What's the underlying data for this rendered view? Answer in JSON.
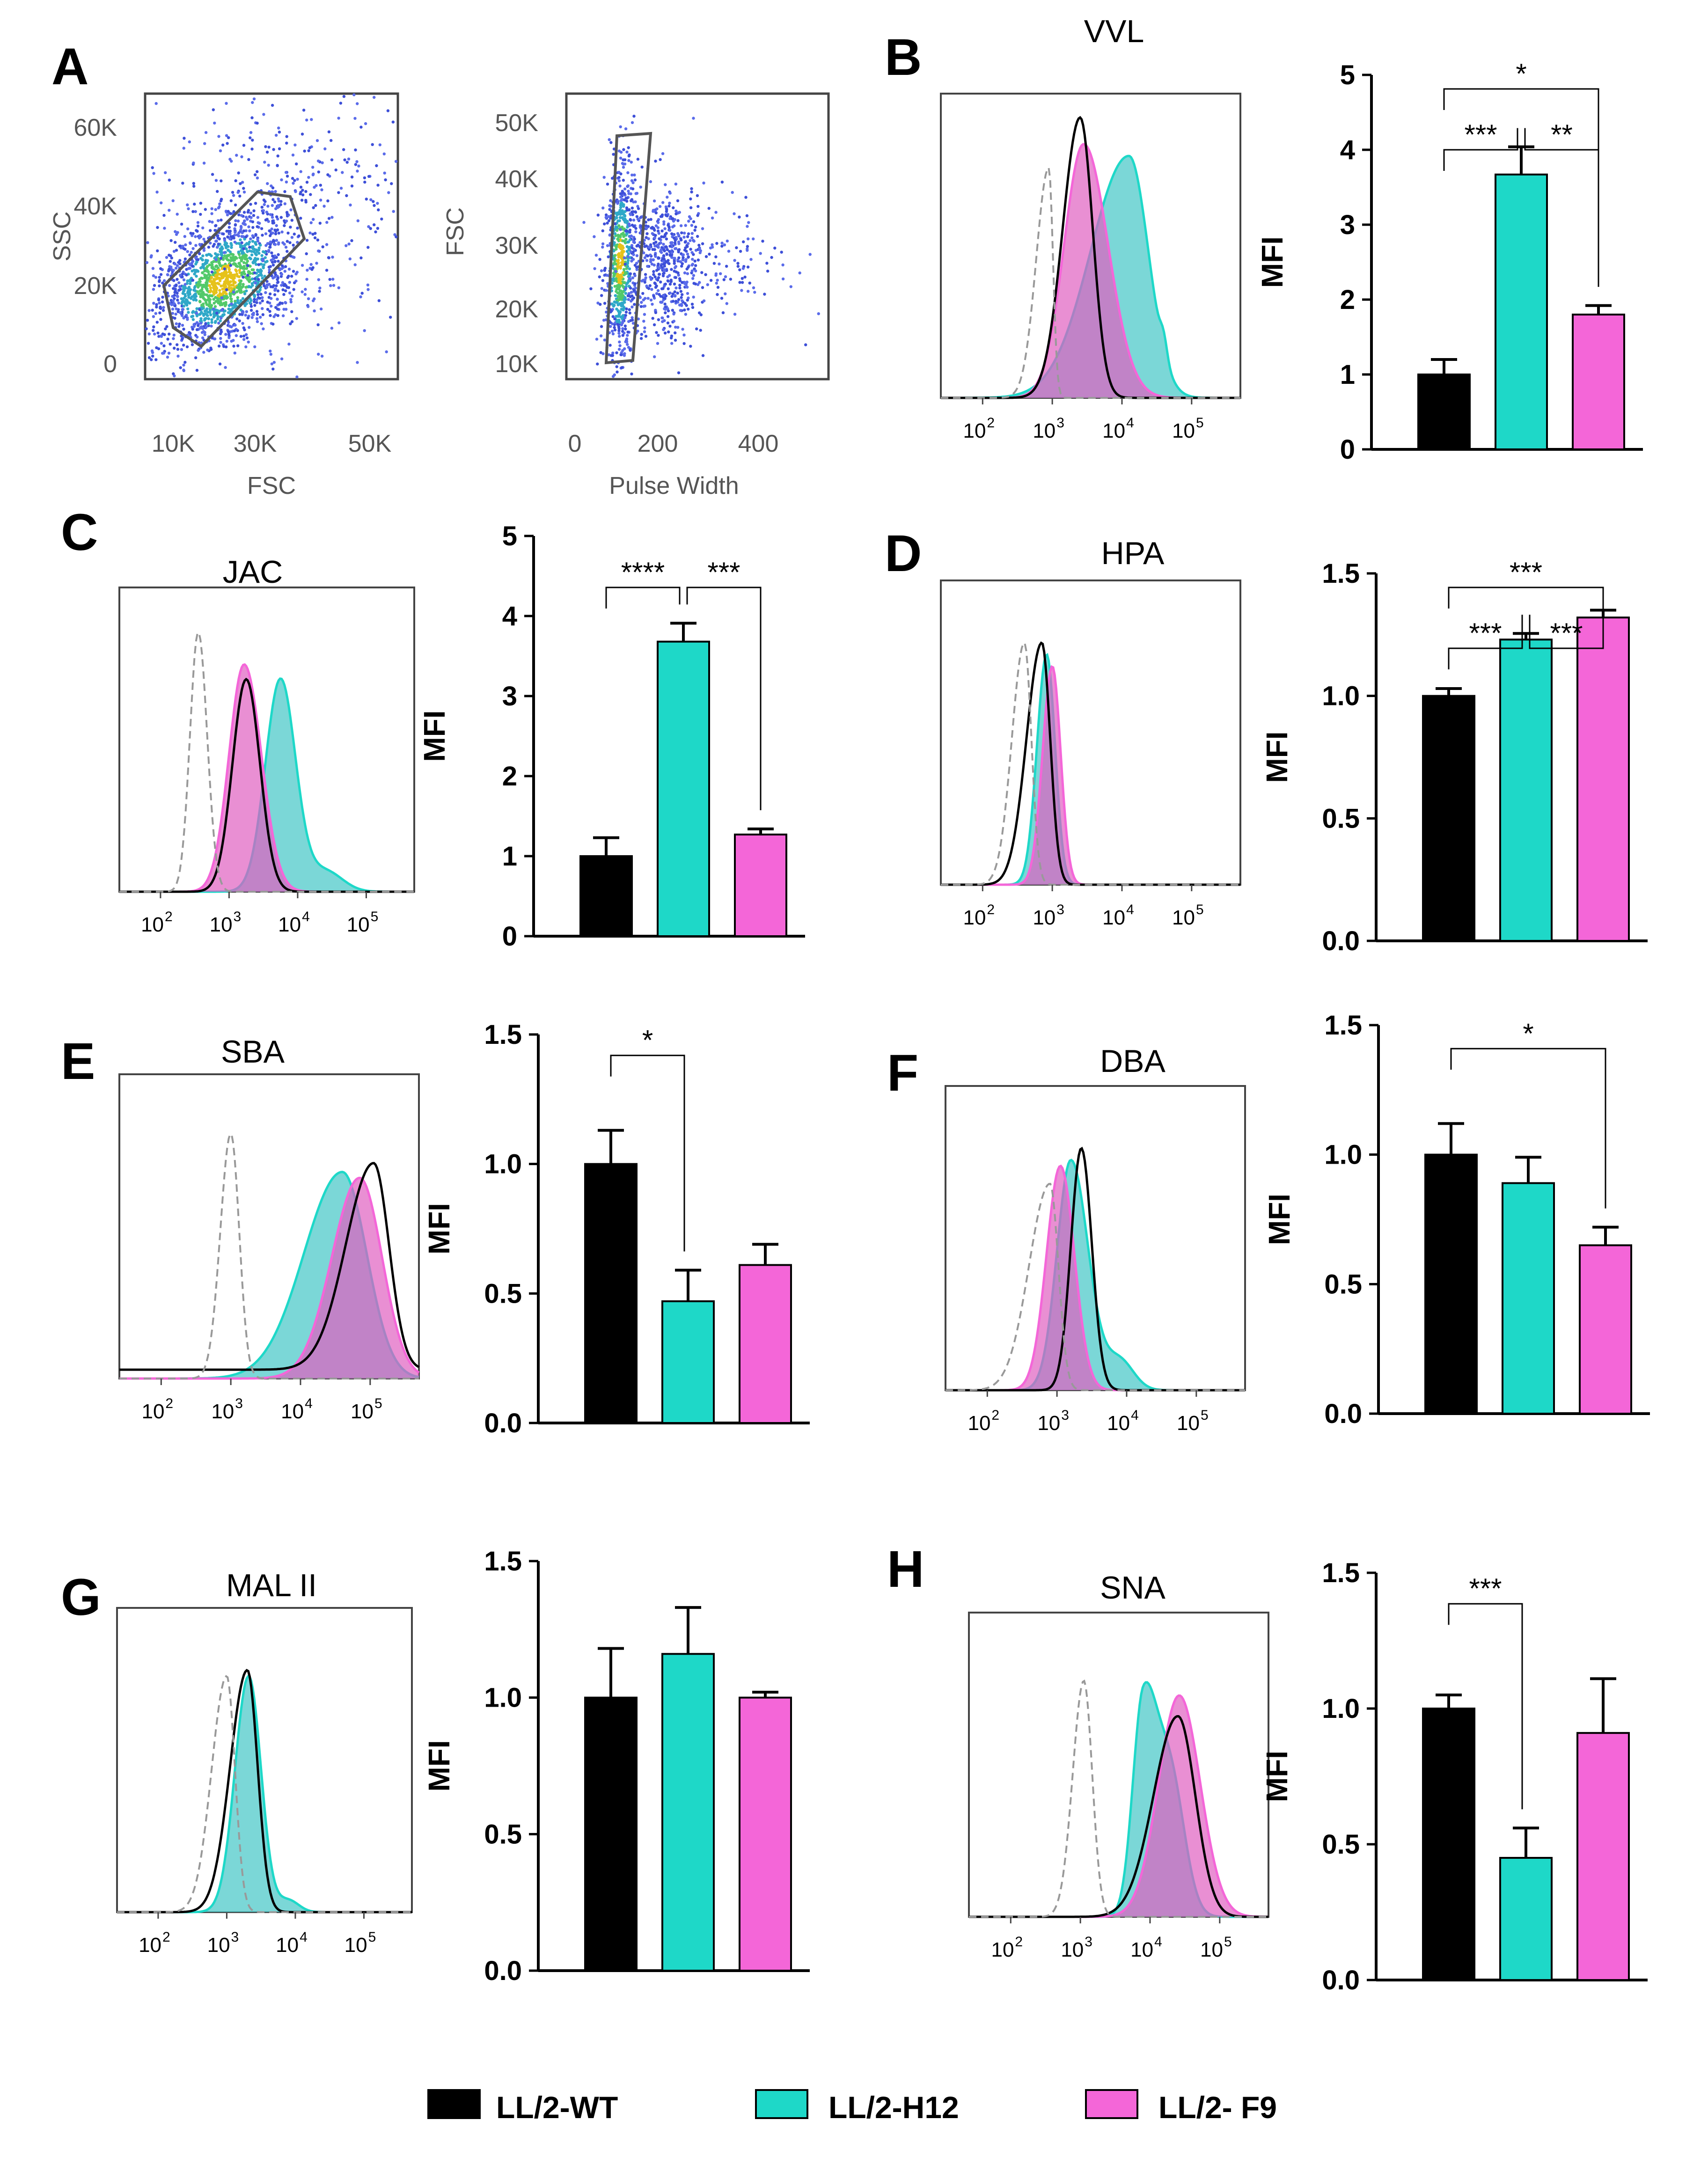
{
  "legend": {
    "entries": [
      {
        "label": "LL/2-WT",
        "color": "#000000"
      },
      {
        "label": "LL/2-H12",
        "color": "#1ED8C8"
      },
      {
        "label": "LL/2- F9",
        "color": "#F466D8"
      }
    ]
  },
  "colors": {
    "wt": "#000000",
    "h12": "#1ED8C8",
    "f9": "#F466D8",
    "overlap": "#8C6FC0",
    "h12_fill": "#4FC9C9",
    "f9_fill": "#E060C0",
    "isotype": "#999999"
  },
  "panel_a": {
    "letter": "A",
    "plot1": {
      "ylabel": "SSC",
      "xlabel": "FSC",
      "yticks": [
        "0",
        "20K",
        "40K",
        "60K"
      ],
      "xticks": [
        "10K",
        "30K",
        "50K"
      ]
    },
    "plot2": {
      "ylabel": "FSC",
      "xlabel": "Pulse Width",
      "yticks": [
        "10K",
        "20K",
        "30K",
        "40K",
        "50K"
      ],
      "xticks": [
        "0",
        "200",
        "400"
      ]
    }
  },
  "hist_ticks": [
    "10",
    "10",
    "10",
    "10"
  ],
  "hist_exponents": [
    "2",
    "3",
    "4",
    "5"
  ],
  "chart_data": [
    {
      "panel": "B",
      "lectin": "VVL",
      "type": "bar",
      "categories": [
        "LL/2-WT",
        "LL/2-H12",
        "LL/2- F9"
      ],
      "values": [
        1.0,
        3.67,
        1.8
      ],
      "errors": [
        0.2,
        0.37,
        0.12
      ],
      "ylabel": "MFI",
      "ylim": [
        0,
        5
      ],
      "yticks": [
        "0",
        "1",
        "2",
        "3",
        "4",
        "5"
      ],
      "significance": [
        {
          "from": 0,
          "to": 1,
          "label": "***"
        },
        {
          "from": 1,
          "to": 2,
          "label": "**"
        },
        {
          "from": 0,
          "to": 2,
          "label": "*"
        }
      ]
    },
    {
      "panel": "C",
      "lectin": "JAC",
      "type": "bar",
      "categories": [
        "LL/2-WT",
        "LL/2-H12",
        "LL/2- F9"
      ],
      "values": [
        1.0,
        3.68,
        1.27
      ],
      "errors": [
        0.23,
        0.23,
        0.07
      ],
      "ylabel": "MFI",
      "ylim": [
        0,
        5
      ],
      "yticks": [
        "0",
        "1",
        "2",
        "3",
        "4",
        "5"
      ],
      "significance": [
        {
          "from": 0,
          "to": 1,
          "label": "****"
        },
        {
          "from": 1,
          "to": 2,
          "label": "***"
        }
      ]
    },
    {
      "panel": "D",
      "lectin": "HPA",
      "type": "bar",
      "categories": [
        "LL/2-WT",
        "LL/2-H12",
        "LL/2- F9"
      ],
      "values": [
        1.0,
        1.23,
        1.32
      ],
      "errors": [
        0.03,
        0.025,
        0.03
      ],
      "ylabel": "MFI",
      "ylim": [
        0,
        1.5
      ],
      "yticks": [
        "0.0",
        "0.5",
        "1.0",
        "1.5"
      ],
      "significance": [
        {
          "from": 0,
          "to": 1,
          "label": "***"
        },
        {
          "from": 1,
          "to": 2,
          "label": "***"
        },
        {
          "from": 0,
          "to": 2,
          "label": "***"
        }
      ]
    },
    {
      "panel": "E",
      "lectin": "SBA",
      "type": "bar",
      "categories": [
        "LL/2-WT",
        "LL/2-H12",
        "LL/2- F9"
      ],
      "values": [
        1.0,
        0.47,
        0.61
      ],
      "errors": [
        0.13,
        0.12,
        0.08
      ],
      "ylabel": "MFI",
      "ylim": [
        0,
        1.5
      ],
      "yticks": [
        "0.0",
        "0.5",
        "1.0",
        "1.5"
      ],
      "significance": [
        {
          "from": 0,
          "to": 1,
          "label": "*"
        }
      ]
    },
    {
      "panel": "F",
      "lectin": "DBA",
      "type": "bar",
      "categories": [
        "LL/2-WT",
        "LL/2-H12",
        "LL/2- F9"
      ],
      "values": [
        1.0,
        0.89,
        0.65
      ],
      "errors": [
        0.12,
        0.1,
        0.07
      ],
      "ylabel": "MFI",
      "ylim": [
        0,
        1.5
      ],
      "yticks": [
        "0.0",
        "0.5",
        "1.0",
        "1.5"
      ],
      "significance": [
        {
          "from": 0,
          "to": 2,
          "label": "*"
        }
      ]
    },
    {
      "panel": "G",
      "lectin": "MAL II",
      "type": "bar",
      "categories": [
        "LL/2-WT",
        "LL/2-H12",
        "LL/2- F9"
      ],
      "values": [
        1.0,
        1.16,
        1.0
      ],
      "errors": [
        0.18,
        0.17,
        0.02
      ],
      "ylabel": "MFI",
      "ylim": [
        0,
        1.5
      ],
      "yticks": [
        "0.0",
        "0.5",
        "1.0",
        "1.5"
      ],
      "significance": []
    },
    {
      "panel": "H",
      "lectin": "SNA",
      "type": "bar",
      "categories": [
        "LL/2-WT",
        "LL/2-H12",
        "LL/2- F9"
      ],
      "values": [
        1.0,
        0.45,
        0.91
      ],
      "errors": [
        0.05,
        0.11,
        0.2
      ],
      "ylabel": "MFI",
      "ylim": [
        0,
        1.5
      ],
      "yticks": [
        "0.0",
        "0.5",
        "1.0",
        "1.5"
      ],
      "significance": [
        {
          "from": 0,
          "to": 1,
          "label": "***"
        }
      ]
    }
  ]
}
